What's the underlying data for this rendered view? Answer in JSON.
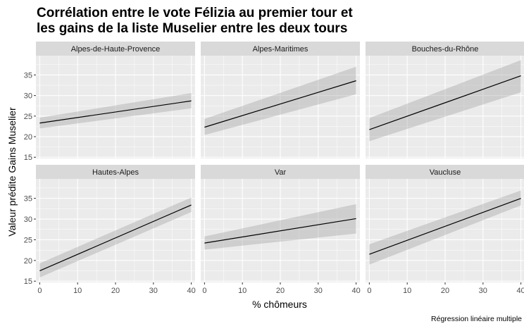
{
  "chart_data": {
    "type": "line",
    "title_lines": [
      "Corrélation entre le vote Félizia au premier tour et",
      "les gains de la liste Muselier entre les deux tours"
    ],
    "xlabel": "% chômeurs",
    "ylabel": "Valeur prédite Gains Muselier",
    "caption": "Régression linéaire multiple",
    "xlim": [
      -1,
      41
    ],
    "ylim": [
      14.7,
      39.7
    ],
    "xticks": [
      0,
      10,
      20,
      30,
      40
    ],
    "yticks": [
      15,
      20,
      25,
      30,
      35
    ],
    "grid": true,
    "panels": [
      {
        "name": "Alpes-de-Haute-Provence",
        "x": [
          0,
          40
        ],
        "y": [
          23.3,
          28.7
        ],
        "ci_low": [
          22.0,
          26.9
        ],
        "ci_high": [
          24.6,
          30.6
        ]
      },
      {
        "name": "Alpes-Maritimes",
        "x": [
          0,
          40
        ],
        "y": [
          22.3,
          33.6
        ],
        "ci_low": [
          20.4,
          30.3
        ],
        "ci_high": [
          24.3,
          37.0
        ]
      },
      {
        "name": "Bouches-du-Rhône",
        "x": [
          0,
          40
        ],
        "y": [
          21.7,
          34.8
        ],
        "ci_low": [
          18.9,
          30.8
        ],
        "ci_high": [
          24.5,
          38.6
        ]
      },
      {
        "name": "Hautes-Alpes",
        "x": [
          0,
          40
        ],
        "y": [
          17.5,
          33.4
        ],
        "ci_low": [
          15.9,
          31.7
        ],
        "ci_high": [
          19.3,
          35.2
        ]
      },
      {
        "name": "Var",
        "x": [
          0,
          40
        ],
        "y": [
          24.2,
          30.1
        ],
        "ci_low": [
          22.6,
          26.5
        ],
        "ci_high": [
          25.8,
          33.6
        ]
      },
      {
        "name": "Vaucluse",
        "x": [
          0,
          40
        ],
        "y": [
          21.5,
          35.0
        ],
        "ci_low": [
          19.0,
          33.3
        ],
        "ci_high": [
          23.9,
          36.9
        ]
      }
    ],
    "colors": {
      "panel_bg": "#ebebeb",
      "strip_bg": "#d9d9d9",
      "grid_major": "#ffffff",
      "line": "#000000",
      "ribbon": "#999999"
    }
  }
}
